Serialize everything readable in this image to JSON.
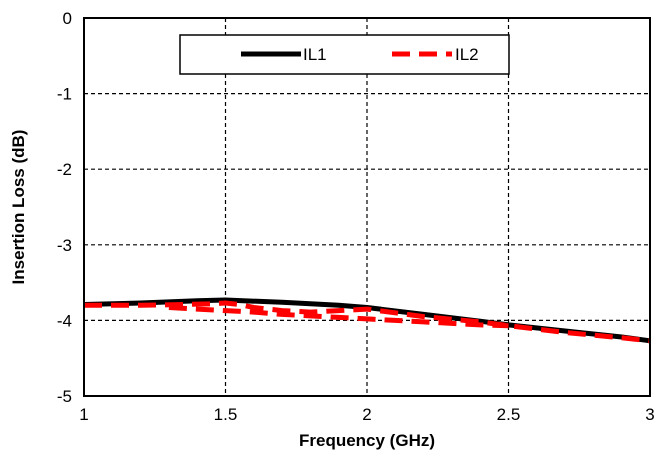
{
  "chart_data": {
    "type": "line",
    "title": "",
    "xlabel": "Frequency (GHz)",
    "ylabel": "Insertion Loss (dB)",
    "xlim": [
      1,
      3
    ],
    "ylim": [
      -5,
      0
    ],
    "xticks": [
      1,
      1.5,
      2,
      2.5,
      3
    ],
    "yticks": [
      0,
      -1,
      -2,
      -3,
      -4,
      -5
    ],
    "x_tick_labels": [
      "1",
      "1.5",
      "2",
      "2.5",
      "3"
    ],
    "y_tick_labels": [
      "0",
      "-1",
      "-2",
      "-3",
      "-4",
      "-5"
    ],
    "grid": true,
    "legend_position": "top-center",
    "series": [
      {
        "name": "IL1",
        "color": "#000000",
        "style": "solid",
        "x": [
          1.0,
          1.2,
          1.4,
          1.5,
          1.7,
          1.9,
          2.0,
          2.2,
          2.4,
          2.5,
          2.7,
          2.9,
          3.0
        ],
        "y": [
          -3.79,
          -3.77,
          -3.74,
          -3.73,
          -3.76,
          -3.8,
          -3.83,
          -3.92,
          -4.01,
          -4.06,
          -4.14,
          -4.22,
          -4.27
        ]
      },
      {
        "name": "IL2",
        "color": "#ff0000",
        "style": "dashed",
        "x": [
          1.0,
          1.2,
          1.35,
          1.45,
          1.5,
          1.55,
          1.6,
          1.7,
          1.8,
          1.9,
          2.0,
          2.2,
          2.4,
          2.5,
          2.7,
          2.9,
          3.0
        ],
        "y": [
          -3.8,
          -3.8,
          -3.79,
          -3.78,
          -3.77,
          -3.79,
          -3.83,
          -3.87,
          -3.89,
          -3.87,
          -3.85,
          -3.95,
          -4.02,
          -4.07,
          -4.16,
          -4.23,
          -4.27
        ]
      },
      {
        "name": "IL2",
        "color": "#ff0000",
        "style": "dashed",
        "x": [
          1.3,
          1.4,
          1.5,
          1.6,
          1.7,
          1.8,
          1.9,
          2.0,
          2.1,
          2.2,
          2.3,
          2.4,
          2.5
        ],
        "y": [
          -3.83,
          -3.85,
          -3.87,
          -3.89,
          -3.92,
          -3.94,
          -3.96,
          -3.98,
          -4.0,
          -4.02,
          -4.04,
          -4.06,
          -4.07
        ]
      }
    ],
    "legend": [
      {
        "label": "IL1",
        "color": "#000000",
        "style": "solid"
      },
      {
        "label": "IL2",
        "color": "#ff0000",
        "style": "dashed"
      }
    ]
  }
}
